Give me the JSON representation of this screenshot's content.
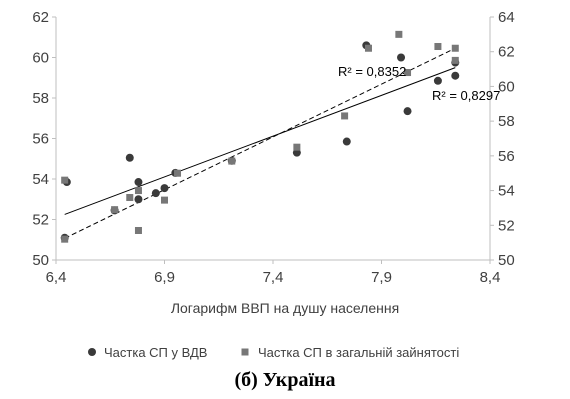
{
  "caption": "(б) Україна",
  "chart_data": {
    "type": "scatter",
    "xlabel": "Логарифм ВВП на душу населення",
    "xlim": [
      6.4,
      8.4
    ],
    "x_ticks": [
      "6,4",
      "6,9",
      "7,4",
      "7,9",
      "8,4"
    ],
    "ylim_left": [
      50,
      62
    ],
    "y_ticks_left": [
      "50",
      "52",
      "54",
      "56",
      "58",
      "60",
      "62"
    ],
    "ylim_right": [
      50,
      64
    ],
    "y_ticks_right": [
      "50",
      "52",
      "54",
      "56",
      "58",
      "60",
      "62",
      "64"
    ],
    "series": [
      {
        "name": "Частка СП у ВДВ",
        "axis": "left",
        "marker": "circle",
        "color": "#3a3a3a",
        "points": [
          [
            6.44,
            51.1
          ],
          [
            6.45,
            53.85
          ],
          [
            6.67,
            52.45
          ],
          [
            6.74,
            55.05
          ],
          [
            6.78,
            53.85
          ],
          [
            6.78,
            53.0
          ],
          [
            6.86,
            53.3
          ],
          [
            6.9,
            53.55
          ],
          [
            6.95,
            54.3
          ],
          [
            7.21,
            54.9
          ],
          [
            7.51,
            55.3
          ],
          [
            7.74,
            55.85
          ],
          [
            7.83,
            60.6
          ],
          [
            7.99,
            60.0
          ],
          [
            8.02,
            57.35
          ],
          [
            8.16,
            58.85
          ],
          [
            8.24,
            59.75
          ],
          [
            8.24,
            59.1
          ]
        ],
        "trend": {
          "x0": 6.44,
          "y0": 52.25,
          "x1": 8.24,
          "y1": 59.5,
          "style": "solid"
        },
        "r2_label": "R² = 0,8297"
      },
      {
        "name": "Частка СП в загальній зайнятості",
        "axis": "right",
        "marker": "square",
        "color": "#777777",
        "points": [
          [
            6.44,
            51.2
          ],
          [
            6.44,
            54.6
          ],
          [
            6.67,
            52.9
          ],
          [
            6.74,
            53.6
          ],
          [
            6.78,
            51.7
          ],
          [
            6.78,
            54.0
          ],
          [
            6.9,
            53.45
          ],
          [
            6.96,
            55.0
          ],
          [
            7.21,
            55.7
          ],
          [
            7.51,
            56.5
          ],
          [
            7.73,
            58.3
          ],
          [
            7.84,
            62.2
          ],
          [
            7.98,
            63.0
          ],
          [
            8.02,
            60.8
          ],
          [
            8.16,
            62.3
          ],
          [
            8.24,
            62.2
          ],
          [
            8.24,
            61.5
          ]
        ],
        "trend": {
          "x0": 6.44,
          "y0": 51.25,
          "x1": 8.24,
          "y1": 62.2,
          "style": "dashed"
        },
        "r2_label": "R² = 0,8352"
      }
    ],
    "legend_position": "bottom"
  }
}
